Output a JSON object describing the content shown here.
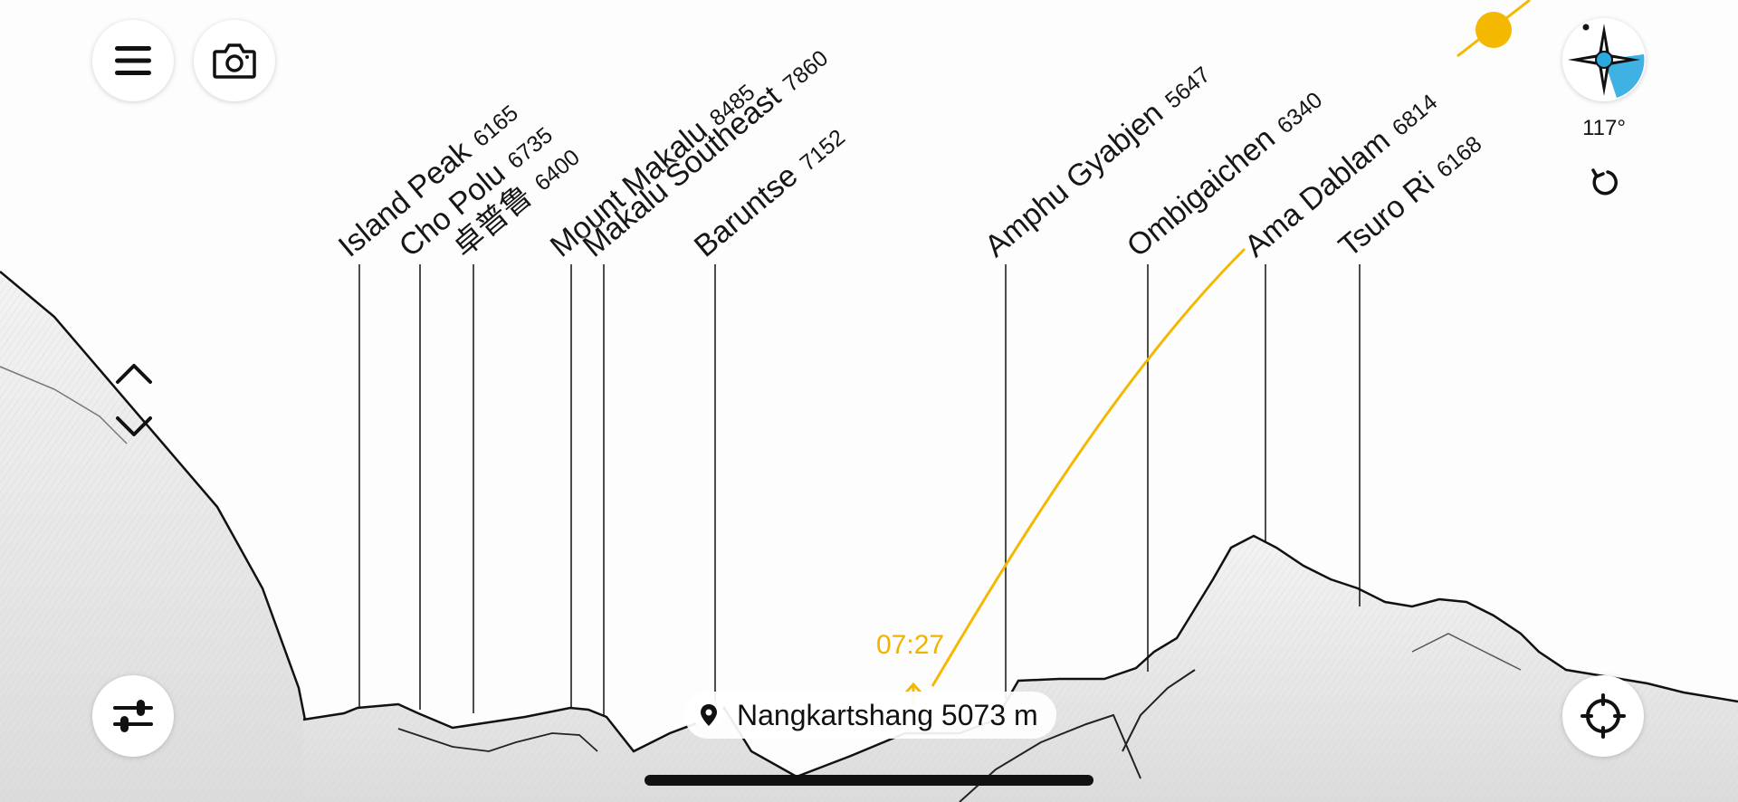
{
  "peaks": [
    {
      "name": "Island Peak",
      "elevation": "6165"
    },
    {
      "name": "Cho Polu",
      "elevation": "6735"
    },
    {
      "name": "卓普鲁",
      "elevation": "6400"
    },
    {
      "name": "Mount Makalu",
      "elevation": "8485"
    },
    {
      "name": "Makalu Southeast",
      "elevation": "7860"
    },
    {
      "name": "Baruntse",
      "elevation": "7152"
    },
    {
      "name": "Amphu Gyabjen",
      "elevation": "5647"
    },
    {
      "name": "Ombigaichen",
      "elevation": "6340"
    },
    {
      "name": "Ama Dablam",
      "elevation": "6814"
    },
    {
      "name": "Tsuro Ri",
      "elevation": "6168"
    }
  ],
  "compass": {
    "heading": "117°"
  },
  "sun": {
    "sunrise_time": "07:27",
    "color": "#f5b800"
  },
  "location": {
    "name": "Nangkartshang 5073 m"
  },
  "colors": {
    "accent": "#2aa9e0",
    "ridge": "#111111"
  },
  "icons": [
    "menu-icon",
    "camera-icon",
    "compass-icon",
    "reset-icon",
    "chevron-up-icon",
    "chevron-down-icon",
    "settings-sliders-icon",
    "recenter-icon",
    "location-pin-icon"
  ]
}
